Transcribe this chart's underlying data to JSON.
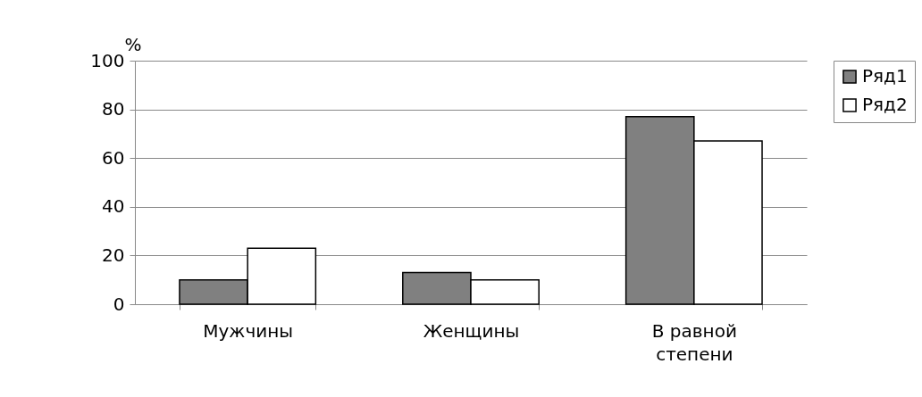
{
  "chart_data": {
    "type": "bar",
    "ylabel": "%",
    "categories": [
      "Мужчины",
      "Женщины",
      "В равной степени"
    ],
    "series": [
      {
        "name": "Ряд1",
        "color": "#808080",
        "values": [
          10,
          13,
          77
        ]
      },
      {
        "name": "Ряд2",
        "color": "#ffffff",
        "values": [
          23,
          10,
          67
        ]
      }
    ],
    "ylim": [
      0,
      100
    ],
    "yticks": [
      0,
      20,
      40,
      60,
      80,
      100
    ],
    "grid": "y",
    "legend": "right"
  }
}
